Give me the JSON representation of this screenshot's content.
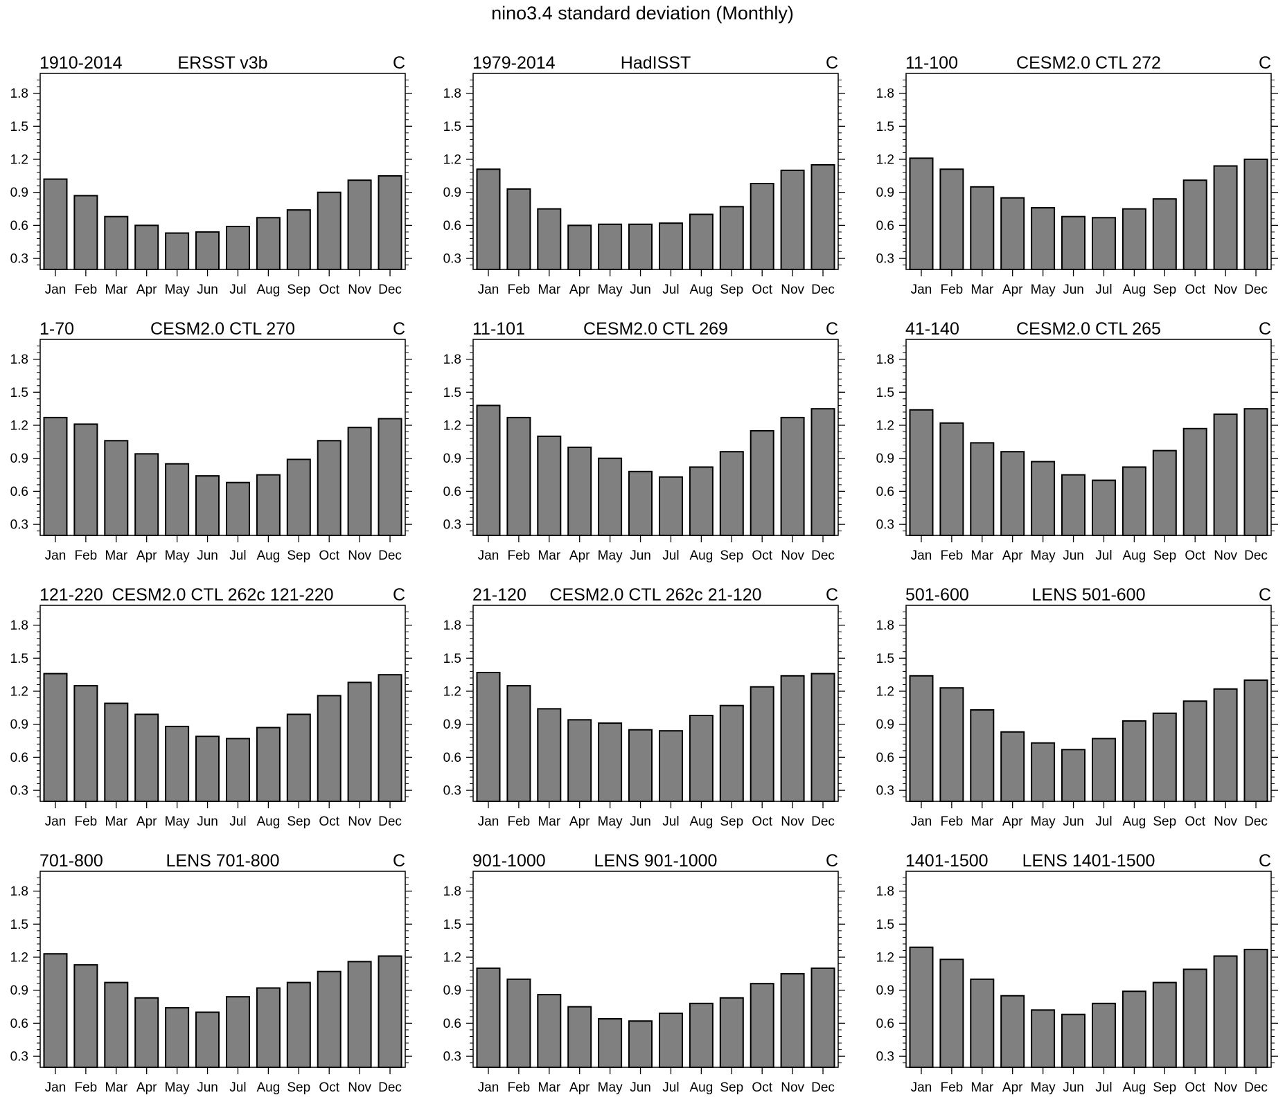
{
  "title": "nino3.4 standard deviation (Monthly)",
  "chart_data": [
    {
      "type": "bar",
      "period": "1910-2014",
      "dataset": "ERSST v3b",
      "units": "C",
      "categories": [
        "Jan",
        "Feb",
        "Mar",
        "Apr",
        "May",
        "Jun",
        "Jul",
        "Aug",
        "Sep",
        "Oct",
        "Nov",
        "Dec"
      ],
      "values": [
        1.02,
        0.87,
        0.68,
        0.6,
        0.53,
        0.54,
        0.59,
        0.67,
        0.74,
        0.9,
        1.01,
        1.05
      ],
      "ylim": [
        0.2,
        1.98
      ],
      "yticks": [
        "0.3",
        "0.6",
        "0.9",
        "1.2",
        "1.5",
        "1.8"
      ]
    },
    {
      "type": "bar",
      "period": "1979-2014",
      "dataset": "HadISST",
      "units": "C",
      "categories": [
        "Jan",
        "Feb",
        "Mar",
        "Apr",
        "May",
        "Jun",
        "Jul",
        "Aug",
        "Sep",
        "Oct",
        "Nov",
        "Dec"
      ],
      "values": [
        1.11,
        0.93,
        0.75,
        0.6,
        0.61,
        0.61,
        0.62,
        0.7,
        0.77,
        0.98,
        1.1,
        1.15
      ],
      "ylim": [
        0.2,
        1.98
      ],
      "yticks": [
        "0.3",
        "0.6",
        "0.9",
        "1.2",
        "1.5",
        "1.8"
      ]
    },
    {
      "type": "bar",
      "period": "11-100",
      "dataset": "CESM2.0 CTL 272",
      "units": "C",
      "categories": [
        "Jan",
        "Feb",
        "Mar",
        "Apr",
        "May",
        "Jun",
        "Jul",
        "Aug",
        "Sep",
        "Oct",
        "Nov",
        "Dec"
      ],
      "values": [
        1.21,
        1.11,
        0.95,
        0.85,
        0.76,
        0.68,
        0.67,
        0.75,
        0.84,
        1.01,
        1.14,
        1.2
      ],
      "ylim": [
        0.2,
        1.98
      ],
      "yticks": [
        "0.3",
        "0.6",
        "0.9",
        "1.2",
        "1.5",
        "1.8"
      ]
    },
    {
      "type": "bar",
      "period": "1-70",
      "dataset": "CESM2.0 CTL 270",
      "units": "C",
      "categories": [
        "Jan",
        "Feb",
        "Mar",
        "Apr",
        "May",
        "Jun",
        "Jul",
        "Aug",
        "Sep",
        "Oct",
        "Nov",
        "Dec"
      ],
      "values": [
        1.27,
        1.21,
        1.06,
        0.94,
        0.85,
        0.74,
        0.68,
        0.75,
        0.89,
        1.06,
        1.18,
        1.26
      ],
      "ylim": [
        0.2,
        1.98
      ],
      "yticks": [
        "0.3",
        "0.6",
        "0.9",
        "1.2",
        "1.5",
        "1.8"
      ]
    },
    {
      "type": "bar",
      "period": "11-101",
      "dataset": "CESM2.0 CTL 269",
      "units": "C",
      "categories": [
        "Jan",
        "Feb",
        "Mar",
        "Apr",
        "May",
        "Jun",
        "Jul",
        "Aug",
        "Sep",
        "Oct",
        "Nov",
        "Dec"
      ],
      "values": [
        1.38,
        1.27,
        1.1,
        1.0,
        0.9,
        0.78,
        0.73,
        0.82,
        0.96,
        1.15,
        1.27,
        1.35
      ],
      "ylim": [
        0.2,
        1.98
      ],
      "yticks": [
        "0.3",
        "0.6",
        "0.9",
        "1.2",
        "1.5",
        "1.8"
      ]
    },
    {
      "type": "bar",
      "period": "41-140",
      "dataset": "CESM2.0 CTL 265",
      "units": "C",
      "categories": [
        "Jan",
        "Feb",
        "Mar",
        "Apr",
        "May",
        "Jun",
        "Jul",
        "Aug",
        "Sep",
        "Oct",
        "Nov",
        "Dec"
      ],
      "values": [
        1.34,
        1.22,
        1.04,
        0.96,
        0.87,
        0.75,
        0.7,
        0.82,
        0.97,
        1.17,
        1.3,
        1.35
      ],
      "ylim": [
        0.2,
        1.98
      ],
      "yticks": [
        "0.3",
        "0.6",
        "0.9",
        "1.2",
        "1.5",
        "1.8"
      ]
    },
    {
      "type": "bar",
      "period": "121-220",
      "dataset": "CESM2.0 CTL 262c 121-220",
      "units": "C",
      "categories": [
        "Jan",
        "Feb",
        "Mar",
        "Apr",
        "May",
        "Jun",
        "Jul",
        "Aug",
        "Sep",
        "Oct",
        "Nov",
        "Dec"
      ],
      "values": [
        1.36,
        1.25,
        1.09,
        0.99,
        0.88,
        0.79,
        0.77,
        0.87,
        0.99,
        1.16,
        1.28,
        1.35
      ],
      "ylim": [
        0.2,
        1.98
      ],
      "yticks": [
        "0.3",
        "0.6",
        "0.9",
        "1.2",
        "1.5",
        "1.8"
      ]
    },
    {
      "type": "bar",
      "period": "21-120",
      "dataset": "CESM2.0 CTL 262c 21-120",
      "units": "C",
      "categories": [
        "Jan",
        "Feb",
        "Mar",
        "Apr",
        "May",
        "Jun",
        "Jul",
        "Aug",
        "Sep",
        "Oct",
        "Nov",
        "Dec"
      ],
      "values": [
        1.37,
        1.25,
        1.04,
        0.94,
        0.91,
        0.85,
        0.84,
        0.98,
        1.07,
        1.24,
        1.34,
        1.36
      ],
      "ylim": [
        0.2,
        1.98
      ],
      "yticks": [
        "0.3",
        "0.6",
        "0.9",
        "1.2",
        "1.5",
        "1.8"
      ]
    },
    {
      "type": "bar",
      "period": "501-600",
      "dataset": "LENS 501-600",
      "units": "C",
      "categories": [
        "Jan",
        "Feb",
        "Mar",
        "Apr",
        "May",
        "Jun",
        "Jul",
        "Aug",
        "Sep",
        "Oct",
        "Nov",
        "Dec"
      ],
      "values": [
        1.34,
        1.23,
        1.03,
        0.83,
        0.73,
        0.67,
        0.77,
        0.93,
        1.0,
        1.11,
        1.22,
        1.3
      ],
      "ylim": [
        0.2,
        1.98
      ],
      "yticks": [
        "0.3",
        "0.6",
        "0.9",
        "1.2",
        "1.5",
        "1.8"
      ]
    },
    {
      "type": "bar",
      "period": "701-800",
      "dataset": "LENS 701-800",
      "units": "C",
      "categories": [
        "Jan",
        "Feb",
        "Mar",
        "Apr",
        "May",
        "Jun",
        "Jul",
        "Aug",
        "Sep",
        "Oct",
        "Nov",
        "Dec"
      ],
      "values": [
        1.23,
        1.13,
        0.97,
        0.83,
        0.74,
        0.7,
        0.84,
        0.92,
        0.97,
        1.07,
        1.16,
        1.21
      ],
      "ylim": [
        0.2,
        1.98
      ],
      "yticks": [
        "0.3",
        "0.6",
        "0.9",
        "1.2",
        "1.5",
        "1.8"
      ]
    },
    {
      "type": "bar",
      "period": "901-1000",
      "dataset": "LENS 901-1000",
      "units": "C",
      "categories": [
        "Jan",
        "Feb",
        "Mar",
        "Apr",
        "May",
        "Jun",
        "Jul",
        "Aug",
        "Sep",
        "Oct",
        "Nov",
        "Dec"
      ],
      "values": [
        1.1,
        1.0,
        0.86,
        0.75,
        0.64,
        0.62,
        0.69,
        0.78,
        0.83,
        0.96,
        1.05,
        1.1
      ],
      "ylim": [
        0.2,
        1.98
      ],
      "yticks": [
        "0.3",
        "0.6",
        "0.9",
        "1.2",
        "1.5",
        "1.8"
      ]
    },
    {
      "type": "bar",
      "period": "1401-1500",
      "dataset": "LENS 1401-1500",
      "units": "C",
      "categories": [
        "Jan",
        "Feb",
        "Mar",
        "Apr",
        "May",
        "Jun",
        "Jul",
        "Aug",
        "Sep",
        "Oct",
        "Nov",
        "Dec"
      ],
      "values": [
        1.29,
        1.18,
        1.0,
        0.85,
        0.72,
        0.68,
        0.78,
        0.89,
        0.97,
        1.09,
        1.21,
        1.27
      ],
      "ylim": [
        0.2,
        1.98
      ],
      "yticks": [
        "0.3",
        "0.6",
        "0.9",
        "1.2",
        "1.5",
        "1.8"
      ]
    }
  ],
  "colors": {
    "bar_fill": "#808080",
    "bar_stroke": "#000000",
    "axis": "#000000",
    "background": "#ffffff"
  }
}
